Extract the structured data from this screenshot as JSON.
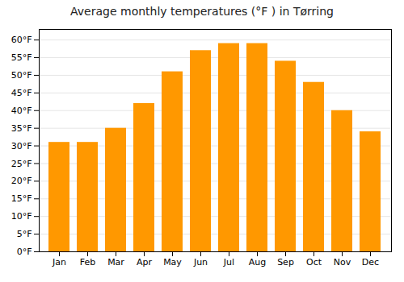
{
  "chart_data": {
    "type": "bar",
    "title": "Average monthly temperatures (°F ) in Tørring",
    "categories": [
      "Jan",
      "Feb",
      "Mar",
      "Apr",
      "May",
      "Jun",
      "Jul",
      "Aug",
      "Sep",
      "Oct",
      "Nov",
      "Dec"
    ],
    "values": [
      31,
      31,
      35,
      42,
      51,
      57,
      59,
      59,
      54,
      48,
      40,
      34
    ],
    "color": "#FF9800",
    "ylim": [
      0,
      63
    ],
    "yticks": [
      {
        "value": 0,
        "label": "0°F"
      },
      {
        "value": 5,
        "label": "5°F"
      },
      {
        "value": 10,
        "label": "10°F"
      },
      {
        "value": 15,
        "label": "15°F"
      },
      {
        "value": 20,
        "label": "20°F"
      },
      {
        "value": 25,
        "label": "25°F"
      },
      {
        "value": 30,
        "label": "30°F"
      },
      {
        "value": 35,
        "label": "35°F"
      },
      {
        "value": 40,
        "label": "40°F"
      },
      {
        "value": 45,
        "label": "45°F"
      },
      {
        "value": 50,
        "label": "50°F"
      },
      {
        "value": 55,
        "label": "55°F"
      },
      {
        "value": 60,
        "label": "60°F"
      }
    ],
    "grid": true
  }
}
